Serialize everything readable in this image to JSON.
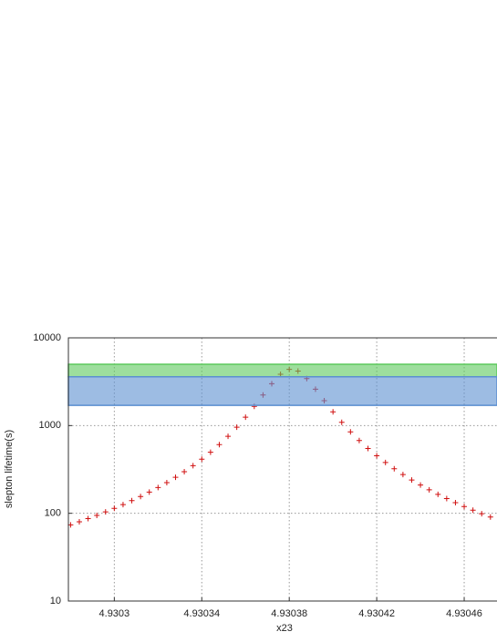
{
  "chart_data": {
    "type": "scatter",
    "xlabel": "x23",
    "ylabel": "slepton lifetime(s)",
    "xlim": [
      4.930279,
      4.930475
    ],
    "xticks": [
      4.9303,
      4.93034,
      4.93038,
      4.93042,
      4.93046
    ],
    "ylim": [
      10,
      10000
    ],
    "yticks": [
      10,
      100,
      1000,
      10000
    ],
    "ylog": true,
    "grid": true,
    "bands": [
      {
        "range": [
          3600,
          5000
        ],
        "color": "#5cc85c"
      },
      {
        "range": [
          1700,
          3600
        ],
        "color": "#5b8fd0"
      }
    ],
    "series": [
      {
        "color": "#d01010",
        "x": [
          4.93028,
          4.930284,
          4.930288,
          4.930292,
          4.930296,
          4.9303,
          4.930304,
          4.930308,
          4.930312,
          4.930316,
          4.93032,
          4.930324,
          4.930328,
          4.930332,
          4.930336,
          4.93034,
          4.930344,
          4.930348,
          4.930352,
          4.930356,
          4.93036,
          4.930364,
          4.930368,
          4.930372,
          4.930376,
          4.93038,
          4.930384,
          4.930388,
          4.930392,
          4.930396,
          4.9304,
          4.930404,
          4.930408,
          4.930412,
          4.930416,
          4.93042,
          4.930424,
          4.930428,
          4.930432,
          4.930436,
          4.93044,
          4.930444,
          4.930448,
          4.930452,
          4.930456,
          4.93046,
          4.930464,
          4.930468,
          4.930472
        ],
        "values": [
          73.9,
          80,
          87,
          94.7,
          103.6,
          113.8,
          125.6,
          139.3,
          155.4,
          174.3,
          196.8,
          223.9,
          257,
          297.7,
          348.7,
          413.2,
          496.8,
          606.9,
          755.1,
          959.3,
          1246,
          1655,
          2234,
          3003,
          3848,
          4375,
          4184,
          3435,
          2597,
          1920,
          1433,
          1090,
          848.8,
          675.4,
          547.9,
          452.3,
          379,
          321.6,
          276.2,
          239.6,
          209.7,
          185,
          164.4,
          147,
          132.2,
          119.5,
          108.5,
          99,
          90.7
        ]
      }
    ]
  }
}
